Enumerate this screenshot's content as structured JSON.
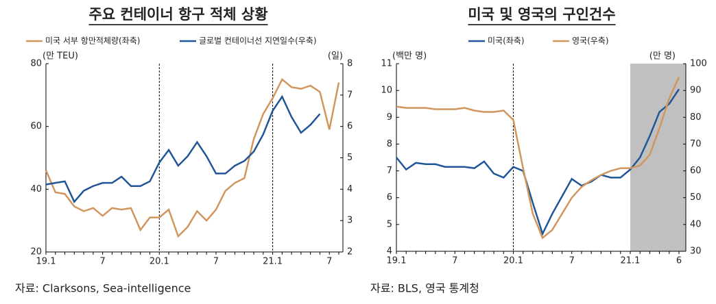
{
  "chart_data": [
    {
      "type": "line",
      "title": "주요 컨테이너 항구 적체 상황",
      "y_label": "(만 TEU)",
      "y2_label": "(일)",
      "source": "자료: Clarksons, Sea-intelligence",
      "categories": [
        "19.1",
        null,
        null,
        null,
        null,
        null,
        "7",
        null,
        null,
        null,
        null,
        null,
        "20.1",
        null,
        null,
        null,
        null,
        null,
        "7",
        null,
        null,
        null,
        null,
        null,
        "21.1",
        null,
        null,
        null,
        null,
        null,
        "7",
        null
      ],
      "series": [
        {
          "name": "미국 서부 항만적체량(좌축)",
          "color": "#d1955d",
          "values": [
            46,
            39,
            38.5,
            34.5,
            33,
            34,
            31.5,
            34,
            33.5,
            34,
            27,
            31,
            31,
            33.5,
            25,
            28,
            33,
            30,
            33.5,
            39.5,
            42,
            43.5,
            56,
            64,
            69,
            75,
            72.5,
            72,
            73,
            71,
            59,
            74
          ]
        },
        {
          "name": "글로벌 컨테이너선 지연일수(우축)",
          "color": "#1f5597",
          "axis": "y2",
          "values": [
            4.15,
            4.2,
            4.25,
            3.6,
            3.95,
            4.1,
            4.2,
            4.2,
            4.4,
            4.1,
            4.1,
            4.25,
            4.85,
            5.25,
            4.75,
            5.05,
            5.5,
            5.05,
            4.5,
            4.5,
            4.75,
            4.9,
            5.2,
            5.75,
            6.5,
            6.95,
            6.3,
            5.8,
            6.05,
            6.4,
            null,
            null
          ]
        }
      ],
      "ylim": [
        20,
        80
      ],
      "yticks": [
        20,
        40,
        60,
        80
      ],
      "y2lim": [
        2,
        8
      ],
      "y2ticks": [
        2,
        3,
        4,
        5,
        6,
        7,
        8
      ]
    },
    {
      "type": "line",
      "title": "미국 및 영국의 구인건수",
      "y_label": "(백만 명)",
      "y2_label": "(만 명)",
      "source": "자료: BLS, 영국 통계청",
      "categories": [
        "19.1",
        null,
        null,
        null,
        null,
        null,
        "7",
        null,
        null,
        null,
        null,
        null,
        "20.1",
        null,
        null,
        null,
        null,
        null,
        "7",
        null,
        null,
        null,
        null,
        null,
        "21.1",
        null,
        null,
        null,
        null,
        "6"
      ],
      "series": [
        {
          "name": "미국(좌축)",
          "color": "#1f5597",
          "values": [
            7.5,
            7.05,
            7.3,
            7.25,
            7.25,
            7.15,
            7.15,
            7.15,
            7.1,
            7.35,
            6.9,
            6.75,
            7.15,
            7.0,
            5.8,
            4.65,
            5.4,
            6.05,
            6.7,
            6.45,
            6.6,
            6.85,
            6.75,
            6.75,
            7.05,
            7.5,
            8.3,
            9.2,
            9.5,
            10.05
          ]
        },
        {
          "name": "영국(우축)",
          "color": "#d1955d",
          "axis": "y2",
          "values": [
            84,
            83.5,
            83.5,
            83.5,
            83,
            83,
            83,
            83.5,
            82.5,
            82,
            82,
            82.5,
            79,
            61,
            44,
            35,
            38,
            44,
            50,
            54,
            56.5,
            58.5,
            60,
            61,
            61,
            62,
            66,
            76,
            87,
            95
          ]
        }
      ],
      "ylim": [
        4,
        11
      ],
      "yticks": [
        4,
        5,
        6,
        7,
        8,
        9,
        10,
        11
      ],
      "y2lim": [
        30,
        100
      ],
      "y2ticks": [
        30,
        40,
        50,
        60,
        70,
        80,
        90,
        100
      ]
    }
  ]
}
